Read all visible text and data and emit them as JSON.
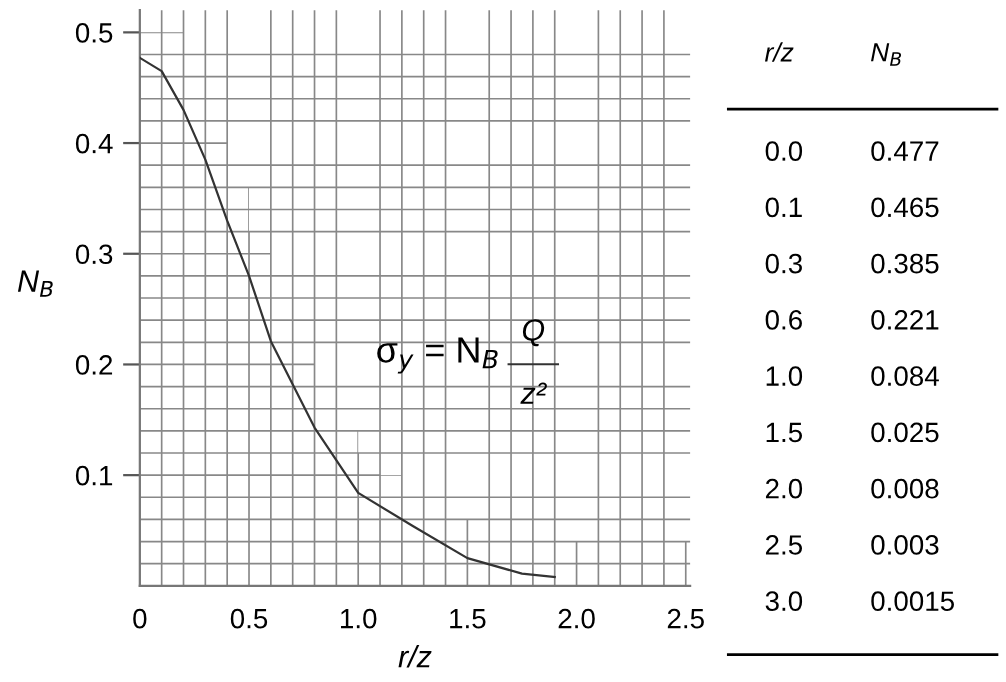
{
  "chart_data": [
    {
      "type": "line",
      "xlabel": "r/z",
      "ylabel": "N$_{B}$",
      "annotations": [
        "σ$_{y}$ = N$_{B}$",
        "Q",
        "z²"
      ],
      "series": [
        {
          "color": "#333333",
          "x": [
            0,
            0.1,
            0.2,
            0.3,
            0.4,
            0.5,
            0.6,
            0.8,
            1.0,
            1.25,
            1.5,
            1.75,
            1.9
          ],
          "values": [
            0.477,
            0.465,
            0.43,
            0.385,
            0.33,
            0.28,
            0.221,
            0.143,
            0.084,
            0.054,
            0.025,
            0.011,
            0.008
          ]
        }
      ],
      "xlim": [
        0,
        2.52
      ],
      "ylim": [
        0,
        0.52
      ],
      "xticks": [
        0,
        {
          "value": 0.1,
          "label": null
        },
        {
          "value": 0.2,
          "label": null
        },
        {
          "value": 0.3,
          "label": null
        },
        {
          "value": 0.4,
          "label": null
        },
        0.5,
        {
          "value": 0.6,
          "label": null
        },
        {
          "value": 0.7,
          "label": null
        },
        {
          "value": 0.8,
          "label": null
        },
        {
          "value": 0.9,
          "label": null
        },
        {
          "value": 1.0,
          "label": "1.0"
        },
        {
          "value": 1.1,
          "label": null
        },
        {
          "value": 1.2,
          "label": null
        },
        {
          "value": 1.3,
          "label": null
        },
        {
          "value": 1.4,
          "label": null
        },
        1.5,
        {
          "value": 1.6,
          "label": null
        },
        {
          "value": 1.7,
          "label": null
        },
        {
          "value": 1.8,
          "label": null
        },
        {
          "value": 1.9,
          "label": null
        },
        {
          "value": 2.0,
          "label": "2.0"
        },
        {
          "value": 2.1,
          "label": null
        },
        {
          "value": 2.2,
          "label": null
        },
        {
          "value": 2.3,
          "label": null
        },
        {
          "value": 2.4,
          "label": null
        },
        2.5
      ],
      "yticks": [
        {
          "value": 0.02,
          "label": null
        },
        {
          "value": 0.04,
          "label": null
        },
        {
          "value": 0.06,
          "label": null
        },
        {
          "value": 0.08,
          "label": null
        },
        0.1,
        {
          "value": 0.12,
          "label": null
        },
        {
          "value": 0.14,
          "label": null
        },
        {
          "value": 0.16,
          "label": null
        },
        {
          "value": 0.18,
          "label": null
        },
        0.2,
        {
          "value": 0.22,
          "label": null
        },
        {
          "value": 0.24,
          "label": null
        },
        {
          "value": 0.26,
          "label": null
        },
        {
          "value": 0.28,
          "label": null
        },
        0.3,
        {
          "value": 0.32,
          "label": null
        },
        {
          "value": 0.34,
          "label": null
        },
        {
          "value": 0.36,
          "label": null
        },
        {
          "value": 0.38,
          "label": null
        },
        0.4,
        {
          "value": 0.42,
          "label": null
        },
        {
          "value": 0.44,
          "label": null
        },
        {
          "value": 0.46,
          "label": null
        },
        {
          "value": 0.48,
          "label": null
        },
        0.5
      ],
      "grid": true,
      "line_style": "solid",
      "marker": "none"
    },
    {
      "type": "other",
      "annotations": [
        "r/z",
        "N$_{B}$",
        "0.0",
        "0.477",
        "0.1",
        "0.465",
        "0.3",
        "0.385",
        "0.6",
        "0.221",
        "1.0",
        "0.084",
        "1.5",
        "0.025",
        "2.0",
        "0.008",
        "2.5",
        "0.003",
        "3.0",
        "0.0015"
      ]
    }
  ]
}
